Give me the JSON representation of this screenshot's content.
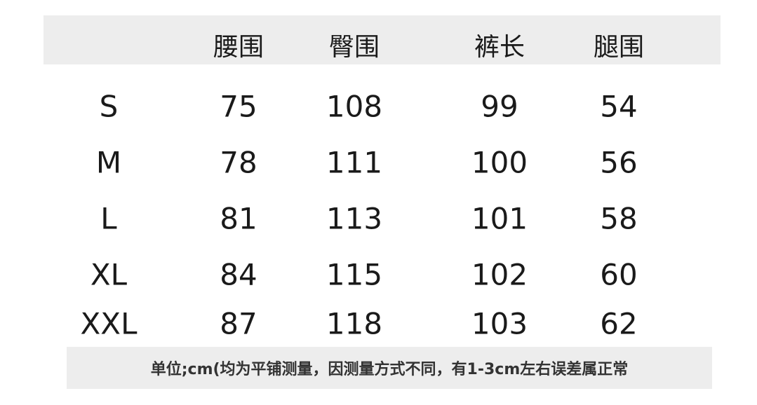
{
  "headers": [
    "",
    "腰围",
    "臀围",
    "裤长",
    "腿围"
  ],
  "rows": [
    [
      "S",
      "75",
      "108",
      "99",
      "54"
    ],
    [
      "M",
      "78",
      "111",
      "100",
      "56"
    ],
    [
      "L",
      "81",
      "113",
      "101",
      "58"
    ],
    [
      "XL",
      "84",
      "115",
      "102",
      "60"
    ],
    [
      "XXL",
      "87",
      "118",
      "103",
      "62"
    ]
  ],
  "footnote": "单位;cm(均为平铺测量，因测量方式不同，有1-3cm左右误差属正常"
}
